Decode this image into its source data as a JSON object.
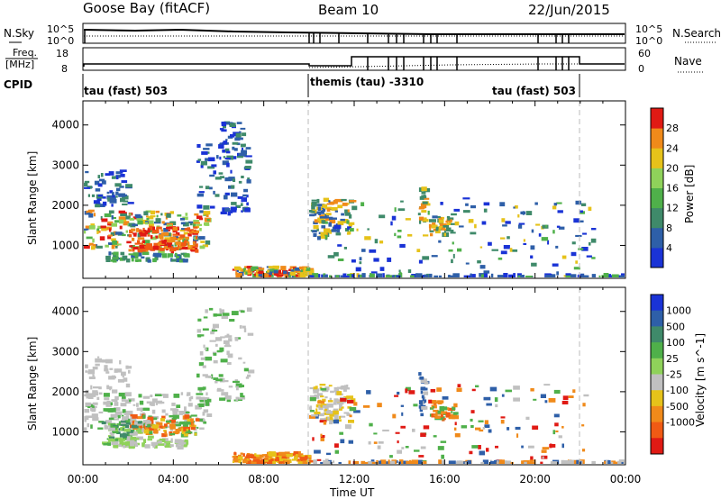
{
  "header": {
    "station": "Goose Bay (fitACF)",
    "beam": "Beam 10",
    "date": "22/Jun/2015"
  },
  "noise_panel": {
    "left_label": "N.Sky",
    "left_ticks": [
      "10^5",
      "10^0"
    ],
    "right_label": "N.Search",
    "right_ticks": [
      "10^5",
      "10^0"
    ]
  },
  "freq_panel": {
    "left_label_top": "Freq.",
    "left_label_bottom": "[MHz]",
    "left_ticks": [
      "18",
      "8"
    ],
    "right_label": "Nave",
    "right_ticks": [
      "60",
      "0"
    ]
  },
  "cpid_panel": {
    "label": "CPID",
    "segments": [
      "tau (fast) 503",
      "themis (tau) -3310",
      "tau (fast) 503"
    ]
  },
  "colors": {
    "blue": "#1a33d6",
    "steelblue": "#2e5fa8",
    "teal": "#3f8a6a",
    "green": "#4fb04a",
    "lightgreen": "#8fd25a",
    "yellow": "#e6c21a",
    "orange": "#f08a1a",
    "darkorange": "#f05a14",
    "red": "#e01a14",
    "grey": "#c0c0c0"
  },
  "chart_data": [
    {
      "type": "heatmap",
      "title": "Power",
      "xlabel": "Time UT",
      "ylabel": "Slant Range [km]",
      "x_ticks": [
        "00:00",
        "04:00",
        "08:00",
        "12:00",
        "16:00",
        "20:00",
        "00:00"
      ],
      "xlim_hours": [
        0,
        24
      ],
      "y_ticks": [
        1000,
        2000,
        3000,
        4000
      ],
      "ylim": [
        180,
        4600
      ],
      "colorbar_label": "Power [dB]",
      "colorbar_ticks": [
        "4",
        "8",
        "12",
        "16",
        "20",
        "24",
        "28"
      ],
      "colorbar_colors": [
        "#1a33d6",
        "#2e5fa8",
        "#3f8a6a",
        "#4fb04a",
        "#8fd25a",
        "#e6c21a",
        "#f08a1a",
        "#e01a14"
      ],
      "blobs": [
        {
          "t0": 0.0,
          "t1": 5.5,
          "r0": 900,
          "r1": 1900,
          "c": [
            "#2e5fa8",
            "#3f8a6a",
            "#4fb04a",
            "#8fd25a",
            "#e6c21a",
            "#f08a1a",
            "#e01a14"
          ],
          "n": 220
        },
        {
          "t0": 2.0,
          "t1": 5.0,
          "r0": 900,
          "r1": 1500,
          "c": [
            "#f08a1a",
            "#e01a14",
            "#f05a14"
          ],
          "n": 120
        },
        {
          "t0": 0.0,
          "t1": 2.0,
          "r0": 2000,
          "r1": 2900,
          "c": [
            "#1a33d6",
            "#2e5fa8",
            "#3f8a6a"
          ],
          "n": 60
        },
        {
          "t0": 1.0,
          "t1": 4.5,
          "r0": 650,
          "r1": 850,
          "c": [
            "#2e5fa8",
            "#3f8a6a",
            "#4fb04a"
          ],
          "n": 60
        },
        {
          "t0": 5.0,
          "t1": 7.3,
          "r0": 1800,
          "r1": 3600,
          "c": [
            "#2e5fa8",
            "#3f8a6a",
            "#1a33d6"
          ],
          "n": 90
        },
        {
          "t0": 6.0,
          "t1": 7.2,
          "r0": 3300,
          "r1": 4100,
          "c": [
            "#1a33d6",
            "#2e5fa8",
            "#3f8a6a"
          ],
          "n": 30
        },
        {
          "t0": 6.6,
          "t1": 10.0,
          "r0": 250,
          "r1": 500,
          "c": [
            "#2e5fa8",
            "#4fb04a",
            "#f08a1a",
            "#e01a14",
            "#e6c21a"
          ],
          "n": 140
        },
        {
          "t0": 10.0,
          "t1": 11.8,
          "r0": 1300,
          "r1": 2200,
          "c": [
            "#2e5fa8",
            "#3f8a6a",
            "#e6c21a",
            "#f08a1a"
          ],
          "n": 90
        },
        {
          "t0": 14.8,
          "t1": 15.1,
          "r0": 1600,
          "r1": 2500,
          "c": [
            "#3f8a6a",
            "#e6c21a",
            "#f08a1a"
          ],
          "n": 25
        },
        {
          "t0": 15.3,
          "t1": 16.4,
          "r0": 1300,
          "r1": 1800,
          "c": [
            "#e6c21a",
            "#f08a1a",
            "#3f8a6a"
          ],
          "n": 40
        },
        {
          "t0": 10.0,
          "t1": 22.5,
          "r0": 180,
          "r1": 2200,
          "c": [
            "#1a33d6",
            "#2e5fa8",
            "#3f8a6a",
            "#4fb04a",
            "#e6c21a"
          ],
          "n": 160
        },
        {
          "t0": 10.0,
          "t1": 24.0,
          "r0": 180,
          "r1": 260,
          "c": [
            "#1a33d6",
            "#2e5fa8",
            "#4fb04a"
          ],
          "n": 90
        }
      ]
    },
    {
      "type": "heatmap",
      "title": "Velocity",
      "xlabel": "Time UT",
      "ylabel": "Slant Range [km]",
      "x_ticks": [
        "00:00",
        "04:00",
        "08:00",
        "12:00",
        "16:00",
        "20:00",
        "00:00"
      ],
      "xlim_hours": [
        0,
        24
      ],
      "y_ticks": [
        1000,
        2000,
        3000,
        4000
      ],
      "ylim": [
        180,
        4600
      ],
      "colorbar_label": "Velocity [m s^-1]",
      "colorbar_ticks": [
        "1000",
        "500",
        "100",
        "25",
        "-25",
        "-100",
        "-500",
        "-1000"
      ],
      "colorbar_colors": [
        "#1a33d6",
        "#2e5fa8",
        "#3f8a6a",
        "#4fb04a",
        "#8fd25a",
        "#c0c0c0",
        "#e6c21a",
        "#f08a1a",
        "#f05a14",
        "#e01a14"
      ],
      "blobs": [
        {
          "t0": 0.0,
          "t1": 5.5,
          "r0": 1100,
          "r1": 2000,
          "c": [
            "#c0c0c0",
            "#c0c0c0",
            "#c0c0c0",
            "#4fb04a"
          ],
          "n": 180
        },
        {
          "t0": 2.0,
          "t1": 5.0,
          "r0": 950,
          "r1": 1450,
          "c": [
            "#f08a1a",
            "#f05a14",
            "#e6c21a",
            "#4fb04a"
          ],
          "n": 120
        },
        {
          "t0": 0.8,
          "t1": 3.0,
          "r0": 700,
          "r1": 1300,
          "c": [
            "#4fb04a",
            "#8fd25a",
            "#3f8a6a",
            "#c0c0c0"
          ],
          "n": 80
        },
        {
          "t0": 1.0,
          "t1": 4.5,
          "r0": 650,
          "r1": 850,
          "c": [
            "#c0c0c0",
            "#8fd25a"
          ],
          "n": 60
        },
        {
          "t0": 0.0,
          "t1": 2.0,
          "r0": 2000,
          "r1": 2900,
          "c": [
            "#c0c0c0"
          ],
          "n": 40
        },
        {
          "t0": 5.0,
          "t1": 7.3,
          "r0": 1800,
          "r1": 4100,
          "c": [
            "#c0c0c0",
            "#c0c0c0",
            "#4fb04a"
          ],
          "n": 100
        },
        {
          "t0": 6.6,
          "t1": 10.0,
          "r0": 250,
          "r1": 520,
          "c": [
            "#f08a1a",
            "#f05a14",
            "#e6c21a"
          ],
          "n": 140
        },
        {
          "t0": 10.0,
          "t1": 11.8,
          "r0": 1300,
          "r1": 2200,
          "c": [
            "#c0c0c0",
            "#c0c0c0",
            "#e6c21a"
          ],
          "n": 90
        },
        {
          "t0": 14.8,
          "t1": 15.1,
          "r0": 1600,
          "r1": 2500,
          "c": [
            "#c0c0c0",
            "#2e5fa8"
          ],
          "n": 25
        },
        {
          "t0": 15.3,
          "t1": 16.4,
          "r0": 1300,
          "r1": 1800,
          "c": [
            "#f08a1a",
            "#f05a14",
            "#4fb04a"
          ],
          "n": 40
        },
        {
          "t0": 10.0,
          "t1": 22.5,
          "r0": 180,
          "r1": 2200,
          "c": [
            "#4fb04a",
            "#f08a1a",
            "#e01a14",
            "#2e5fa8",
            "#c0c0c0"
          ],
          "n": 160
        },
        {
          "t0": 10.0,
          "t1": 24.0,
          "r0": 180,
          "r1": 260,
          "c": [
            "#c0c0c0",
            "#f08a1a",
            "#2e5fa8"
          ],
          "n": 90
        }
      ]
    }
  ]
}
